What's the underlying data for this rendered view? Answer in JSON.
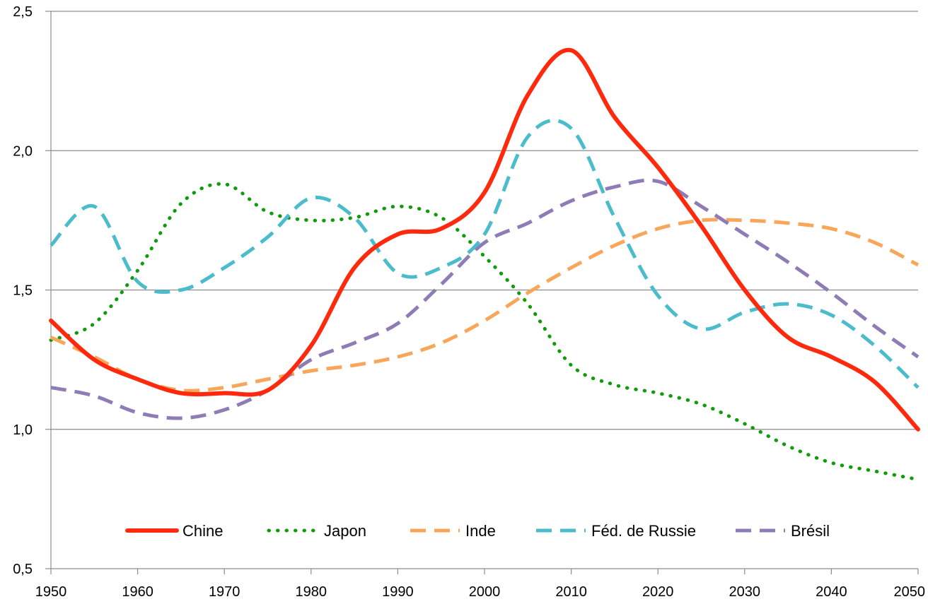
{
  "chart_data": {
    "type": "line",
    "title": "",
    "xlabel": "",
    "ylabel": "",
    "xlim": [
      1950,
      2050
    ],
    "ylim": [
      0.5,
      2.5
    ],
    "x_ticks": [
      "1950",
      "1960",
      "1970",
      "1980",
      "1990",
      "2000",
      "2010",
      "2020",
      "2030",
      "2040",
      "2050"
    ],
    "y_ticks": [
      {
        "value": 0.5,
        "label": "0,5"
      },
      {
        "value": 1.0,
        "label": "1,0"
      },
      {
        "value": 1.5,
        "label": "1,5"
      },
      {
        "value": 2.0,
        "label": "2,0"
      },
      {
        "value": 2.5,
        "label": "2,5"
      }
    ],
    "grid": true,
    "legend_position": "bottom-inside",
    "series": [
      {
        "name": "Chine",
        "color": "#ff2a0e",
        "style": "solid",
        "points": [
          [
            1950,
            1.39
          ],
          [
            1955,
            1.25
          ],
          [
            1960,
            1.18
          ],
          [
            1965,
            1.13
          ],
          [
            1970,
            1.13
          ],
          [
            1975,
            1.14
          ],
          [
            1980,
            1.3
          ],
          [
            1985,
            1.58
          ],
          [
            1990,
            1.7
          ],
          [
            1995,
            1.72
          ],
          [
            2000,
            1.85
          ],
          [
            2005,
            2.2
          ],
          [
            2010,
            2.36
          ],
          [
            2015,
            2.12
          ],
          [
            2020,
            1.94
          ],
          [
            2025,
            1.73
          ],
          [
            2030,
            1.5
          ],
          [
            2035,
            1.33
          ],
          [
            2040,
            1.26
          ],
          [
            2045,
            1.17
          ],
          [
            2050,
            1.0
          ]
        ]
      },
      {
        "name": "Japon",
        "color": "#109b0b",
        "style": "dotted",
        "points": [
          [
            1950,
            1.32
          ],
          [
            1955,
            1.38
          ],
          [
            1960,
            1.57
          ],
          [
            1965,
            1.81
          ],
          [
            1970,
            1.88
          ],
          [
            1975,
            1.78
          ],
          [
            1980,
            1.75
          ],
          [
            1985,
            1.76
          ],
          [
            1990,
            1.8
          ],
          [
            1995,
            1.76
          ],
          [
            2000,
            1.62
          ],
          [
            2005,
            1.45
          ],
          [
            2010,
            1.23
          ],
          [
            2015,
            1.16
          ],
          [
            2020,
            1.13
          ],
          [
            2025,
            1.09
          ],
          [
            2030,
            1.02
          ],
          [
            2035,
            0.94
          ],
          [
            2040,
            0.88
          ],
          [
            2045,
            0.85
          ],
          [
            2050,
            0.82
          ]
        ]
      },
      {
        "name": "Inde",
        "color": "#f8a75a",
        "style": "dashed",
        "points": [
          [
            1950,
            1.33
          ],
          [
            1955,
            1.26
          ],
          [
            1960,
            1.18
          ],
          [
            1965,
            1.14
          ],
          [
            1970,
            1.15
          ],
          [
            1975,
            1.18
          ],
          [
            1980,
            1.21
          ],
          [
            1985,
            1.23
          ],
          [
            1990,
            1.26
          ],
          [
            1995,
            1.31
          ],
          [
            2000,
            1.39
          ],
          [
            2005,
            1.49
          ],
          [
            2010,
            1.58
          ],
          [
            2015,
            1.66
          ],
          [
            2020,
            1.72
          ],
          [
            2025,
            1.75
          ],
          [
            2030,
            1.75
          ],
          [
            2035,
            1.74
          ],
          [
            2040,
            1.72
          ],
          [
            2045,
            1.67
          ],
          [
            2050,
            1.59
          ]
        ]
      },
      {
        "name": "Féd. de Russie",
        "color": "#4bbccc",
        "style": "dashed",
        "points": [
          [
            1950,
            1.66
          ],
          [
            1955,
            1.8
          ],
          [
            1960,
            1.53
          ],
          [
            1965,
            1.5
          ],
          [
            1970,
            1.58
          ],
          [
            1975,
            1.69
          ],
          [
            1980,
            1.83
          ],
          [
            1985,
            1.76
          ],
          [
            1990,
            1.56
          ],
          [
            1995,
            1.58
          ],
          [
            2000,
            1.7
          ],
          [
            2005,
            2.05
          ],
          [
            2010,
            2.08
          ],
          [
            2015,
            1.76
          ],
          [
            2020,
            1.48
          ],
          [
            2025,
            1.36
          ],
          [
            2030,
            1.42
          ],
          [
            2035,
            1.45
          ],
          [
            2040,
            1.41
          ],
          [
            2045,
            1.3
          ],
          [
            2050,
            1.15
          ]
        ]
      },
      {
        "name": "Brésil",
        "color": "#8f7cb6",
        "style": "dashed",
        "points": [
          [
            1950,
            1.15
          ],
          [
            1955,
            1.12
          ],
          [
            1960,
            1.06
          ],
          [
            1965,
            1.04
          ],
          [
            1970,
            1.07
          ],
          [
            1975,
            1.14
          ],
          [
            1980,
            1.25
          ],
          [
            1985,
            1.31
          ],
          [
            1990,
            1.38
          ],
          [
            1995,
            1.52
          ],
          [
            2000,
            1.67
          ],
          [
            2005,
            1.74
          ],
          [
            2010,
            1.82
          ],
          [
            2015,
            1.87
          ],
          [
            2020,
            1.89
          ],
          [
            2025,
            1.8
          ],
          [
            2030,
            1.7
          ],
          [
            2035,
            1.6
          ],
          [
            2040,
            1.49
          ],
          [
            2045,
            1.37
          ],
          [
            2050,
            1.26
          ]
        ]
      }
    ]
  }
}
